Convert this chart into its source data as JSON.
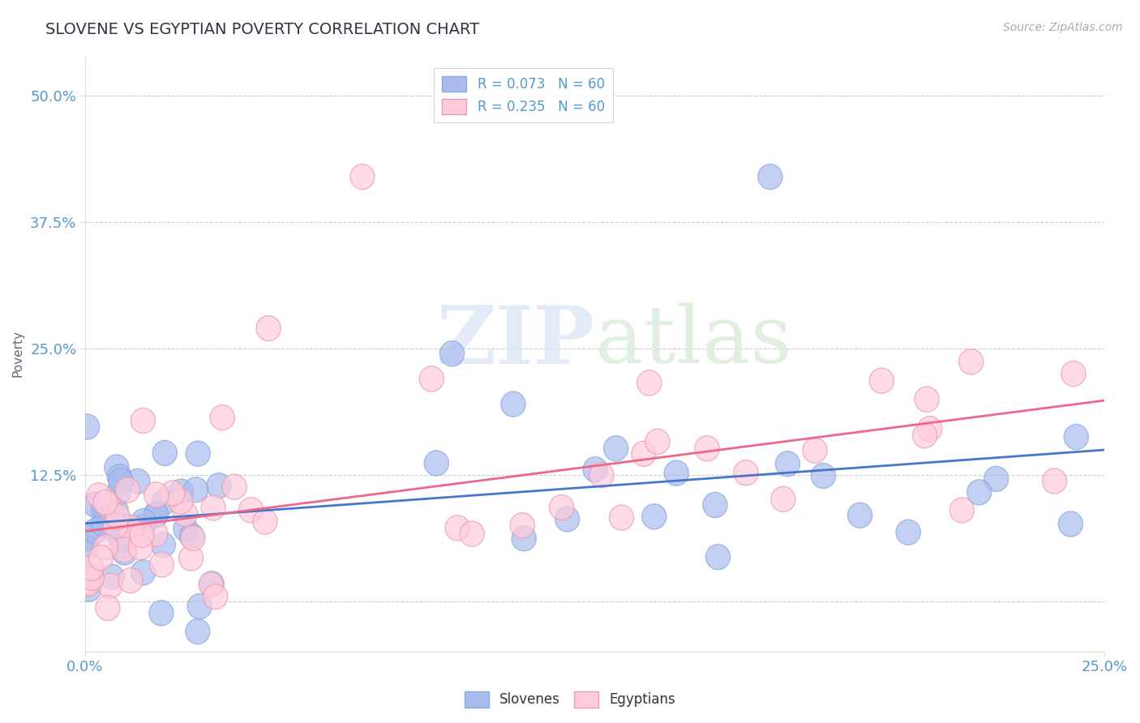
{
  "title": "SLOVENE VS EGYPTIAN POVERTY CORRELATION CHART",
  "source": "Source: ZipAtlas.com",
  "ylabel": "Poverty",
  "xlim": [
    0.0,
    0.25
  ],
  "ylim": [
    -0.05,
    0.54
  ],
  "yticks": [
    0.0,
    0.125,
    0.25,
    0.375,
    0.5
  ],
  "ytick_labels": [
    "",
    "12.5%",
    "25.0%",
    "37.5%",
    "50.0%"
  ],
  "xticks": [
    0.0,
    0.25
  ],
  "xtick_labels": [
    "0.0%",
    "25.0%"
  ],
  "grid_color": "#cccccc",
  "background_color": "#ffffff",
  "slovene_color": "#aabbee",
  "slovene_edge": "#88aadd",
  "egyptian_color": "#ffccdd",
  "egyptian_edge": "#ee99aa",
  "title_color": "#333344",
  "axis_label_color": "#666677",
  "tick_label_color": "#5599cc",
  "slovene_R": "0.073",
  "slovene_N": "60",
  "egyptian_R": "0.235",
  "egyptian_N": "60",
  "line_blue": "#4477cc",
  "line_pink": "#ee6688",
  "watermark_color": "#e0e8f8",
  "watermark2_color": "#ddeedd"
}
